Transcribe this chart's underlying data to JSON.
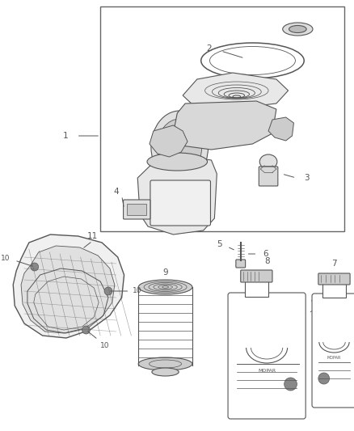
{
  "bg_color": "#ffffff",
  "line_color": "#555555",
  "text_color": "#555555",
  "lw": 0.8
}
